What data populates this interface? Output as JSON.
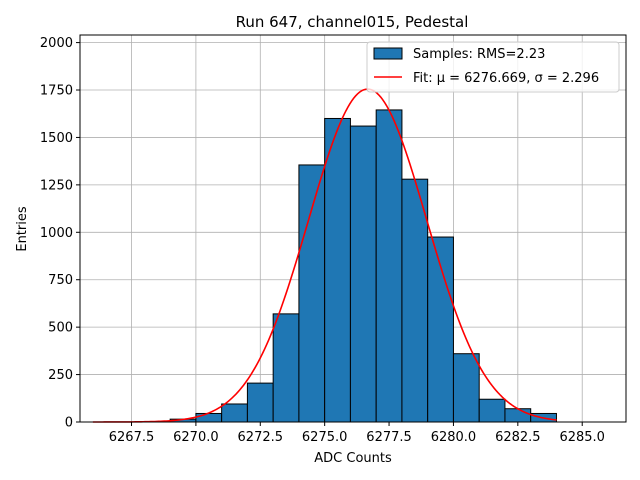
{
  "chart_data": {
    "type": "bar",
    "title": "Run 647, channel015, Pedestal",
    "xlabel": "ADC Counts",
    "ylabel": "Entries",
    "xlim": [
      6265.5,
      6286.7
    ],
    "ylim": [
      0,
      2040
    ],
    "grid": true,
    "legend_position": "top-right",
    "x_ticks": [
      6267.5,
      6270.0,
      6272.5,
      6275.0,
      6277.5,
      6280.0,
      6282.5,
      6285.0
    ],
    "y_ticks": [
      0,
      250,
      500,
      750,
      1000,
      1250,
      1500,
      1750,
      2000
    ],
    "bin_edges": [
      6269,
      6270,
      6271,
      6272,
      6273,
      6274,
      6275,
      6276,
      6277,
      6278,
      6279,
      6280,
      6281,
      6282,
      6283,
      6284
    ],
    "values": [
      15,
      45,
      95,
      205,
      570,
      1355,
      1600,
      1560,
      1645,
      1280,
      975,
      360,
      120,
      70,
      45
    ],
    "fit": {
      "mu": 6276.669,
      "sigma": 2.296,
      "amplitude": 1755,
      "x_range": [
        6266,
        6284
      ]
    },
    "legend": [
      {
        "label": "Samples: RMS=2.23",
        "kind": "patch",
        "color": "#1f77b4"
      },
      {
        "label": "Fit: μ = 6276.669, σ = 2.296",
        "kind": "line",
        "color": "#ff0000"
      }
    ],
    "colors": {
      "bar": "#1f77b4",
      "bar_edge": "#000000",
      "fit": "#ff0000",
      "grid": "#b0b0b0"
    }
  }
}
